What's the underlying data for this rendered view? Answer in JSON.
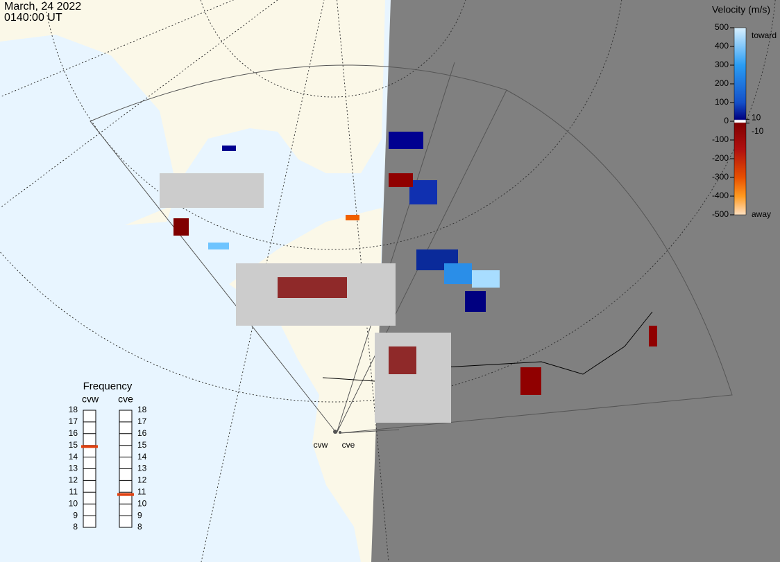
{
  "header": {
    "date": "March, 24 2022",
    "time": "0140:00 UT"
  },
  "colorbar": {
    "title": "Velocity (m/s)",
    "ticks": [
      500,
      400,
      300,
      200,
      100,
      0,
      -100,
      -200,
      -300,
      -400,
      -500
    ],
    "cutoff": [
      10,
      -10
    ],
    "top_label": "toward",
    "bottom_label": "away"
  },
  "frequency": {
    "title": "Frequency",
    "ticks": [
      18,
      17,
      16,
      15,
      14,
      13,
      12,
      11,
      10,
      9,
      8
    ],
    "radars": [
      {
        "name": "cvw",
        "value": 14.9
      },
      {
        "name": "cve",
        "value": 10.8
      }
    ]
  },
  "stations": [
    "cvw",
    "cve"
  ]
}
